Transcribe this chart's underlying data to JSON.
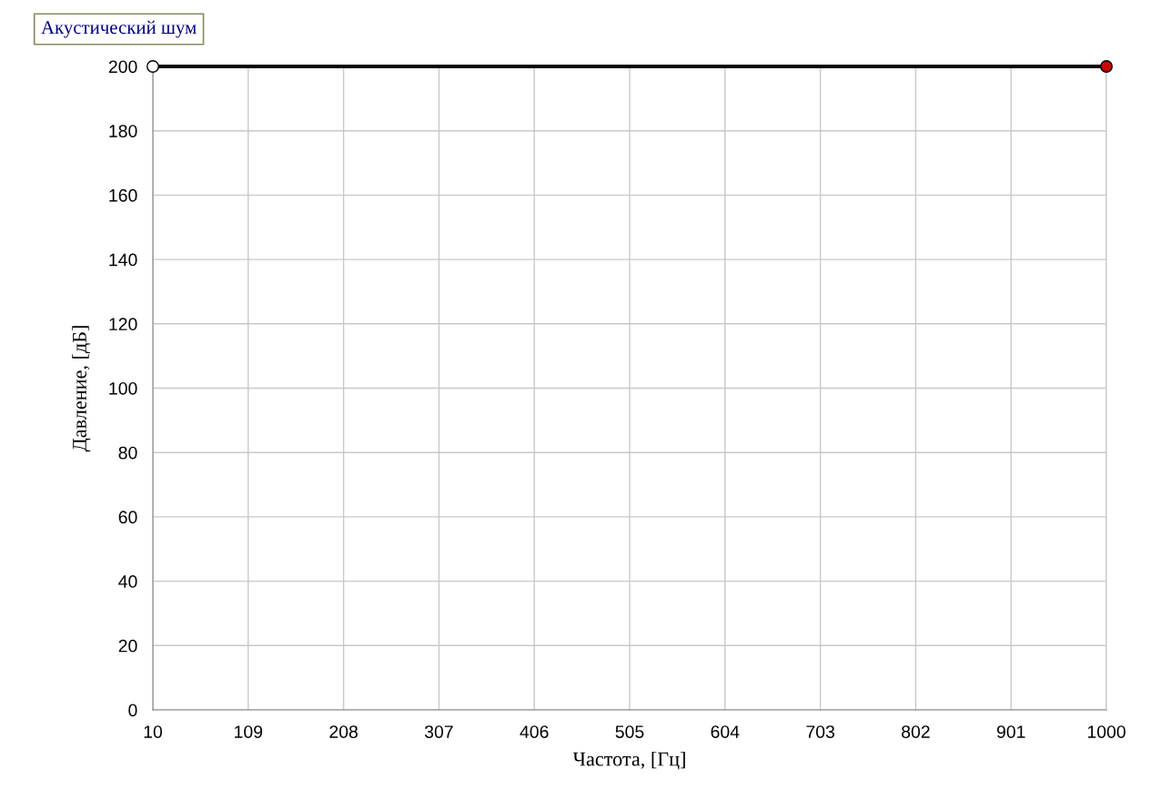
{
  "chart_data": {
    "type": "line",
    "title": "Акустический шум",
    "xlabel": "Частота, [Гц]",
    "ylabel": "Давление, [дБ]",
    "x": [
      10,
      1000
    ],
    "series": [
      {
        "color": "#000000",
        "colors": [
          "#ffffff",
          "#cc0000"
        ],
        "values": [
          200,
          200
        ]
      }
    ],
    "marker": "circle",
    "xlim": [
      10,
      1000
    ],
    "xticks": [
      10,
      109,
      208,
      307,
      406,
      505,
      604,
      703,
      802,
      901,
      1000
    ],
    "ylim": [
      0,
      200
    ],
    "yticks": [
      0,
      20,
      40,
      60,
      80,
      100,
      120,
      140,
      160,
      180,
      200
    ],
    "grid": true
  }
}
